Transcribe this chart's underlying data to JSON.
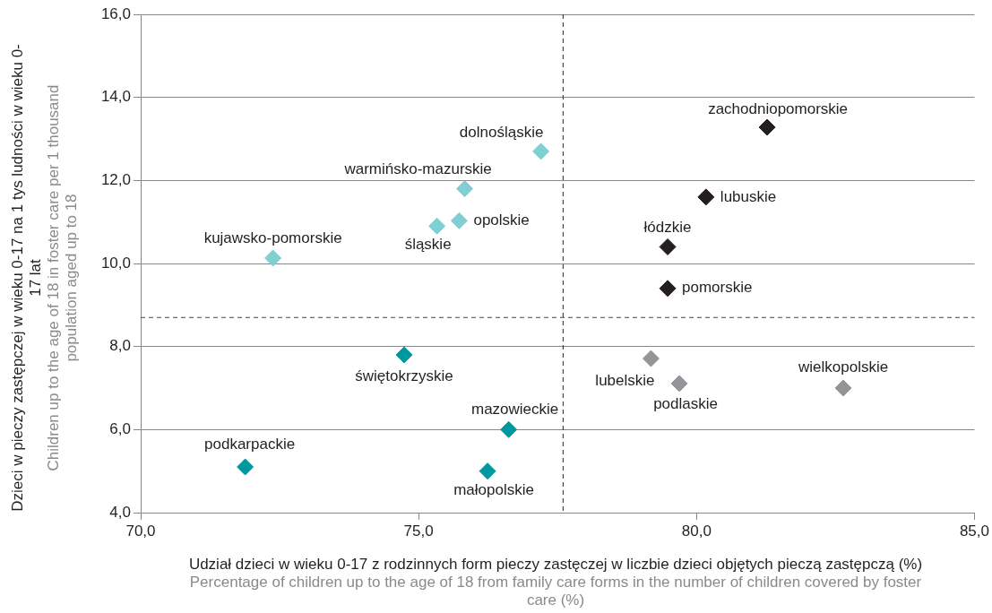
{
  "chart_data": {
    "type": "scatter",
    "xlabel": "Udział dzieci w wieku 0-17 z rodzinnych form pieczy zastęczej w liczbie dzieci objętych pieczą zastępczą (%)\nPercentage of children up to the age of 18  from family care forms in the number of children covered by foster care (%)",
    "ylabel": "Dzieci w pieczy zastępczej w wieku 0-17 na 1 tys ludności w wieku 0-17 lat\nChildren up to the age of 18 in foster care per 1 thousand population aged up to 18",
    "series": [
      {
        "color": "#7fcfd3",
        "x": [
          72.38,
          75.33,
          75.73,
          75.83,
          77.2
        ],
        "values": [
          10.13,
          10.9,
          11.03,
          11.8,
          12.7
        ]
      },
      {
        "color": "#231f20",
        "x": [
          81.27,
          80.17,
          79.48,
          79.48
        ],
        "values": [
          13.28,
          11.6,
          10.4,
          9.4
        ]
      },
      {
        "color": "#939598",
        "x": [
          79.18,
          79.69,
          82.64
        ],
        "values": [
          7.71,
          7.11,
          7.0
        ]
      },
      {
        "color": "#00989f",
        "x": [
          74.74,
          76.62,
          71.88,
          76.24
        ],
        "values": [
          7.8,
          6.0,
          5.1,
          5.0
        ]
      }
    ],
    "xlim": [
      70,
      85
    ],
    "xticks": [
      {
        "value": 70,
        "label": "70,0"
      },
      {
        "value": 75,
        "label": "75,0"
      },
      {
        "value": 80,
        "label": "80,0"
      },
      {
        "value": 85,
        "label": "85,0"
      }
    ],
    "ylim": [
      4,
      16
    ],
    "yticks": [
      {
        "value": 4,
        "label": "4,0"
      },
      {
        "value": 6,
        "label": "6,0"
      },
      {
        "value": 8,
        "label": "8,0"
      },
      {
        "value": 10,
        "label": "10,0"
      },
      {
        "value": 12,
        "label": "12,0"
      },
      {
        "value": 14,
        "label": "14,0"
      },
      {
        "value": 16,
        "label": "16,0"
      }
    ],
    "grid": "y",
    "legend": false,
    "marker": "diamond",
    "ref_lines": [
      {
        "axis": "x",
        "value": 77.6,
        "color": "#444444",
        "line_style": "dashed"
      },
      {
        "axis": "y",
        "value": 8.7,
        "color": "#444444",
        "line_style": "dashed"
      }
    ],
    "annotations": [
      {
        "text": "kujawsko-pomorskie",
        "x": 72.38,
        "y": 10.13
      },
      {
        "text": "śląskie",
        "x": 75.33,
        "y": 10.9
      },
      {
        "text": "opolskie",
        "x": 75.73,
        "y": 11.03
      },
      {
        "text": "warmińsko-mazurskie",
        "x": 75.83,
        "y": 11.8
      },
      {
        "text": "dolnośląskie",
        "x": 77.2,
        "y": 12.7
      },
      {
        "text": "zachodniopomorskie",
        "x": 81.27,
        "y": 13.28
      },
      {
        "text": "lubuskie",
        "x": 80.17,
        "y": 11.6
      },
      {
        "text": "łódzkie",
        "x": 79.48,
        "y": 10.4
      },
      {
        "text": "pomorskie",
        "x": 79.48,
        "y": 9.4
      },
      {
        "text": "lubelskie",
        "x": 79.18,
        "y": 7.71
      },
      {
        "text": "podlaskie",
        "x": 79.69,
        "y": 7.11
      },
      {
        "text": "wielkopolskie",
        "x": 82.64,
        "y": 7.0
      },
      {
        "text": "świętokrzyskie",
        "x": 74.74,
        "y": 7.8
      },
      {
        "text": "mazowieckie",
        "x": 76.62,
        "y": 6.0
      },
      {
        "text": "podkarpackie",
        "x": 71.88,
        "y": 5.1
      },
      {
        "text": "małopolskie",
        "x": 76.24,
        "y": 5.0
      }
    ]
  }
}
